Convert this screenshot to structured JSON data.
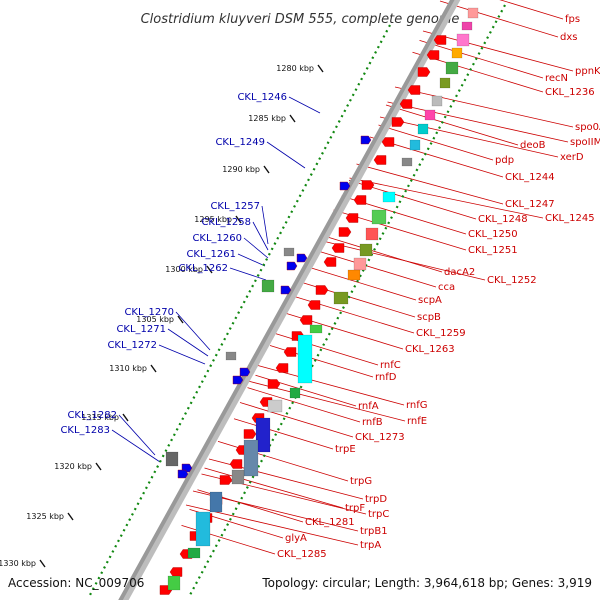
{
  "header": {
    "title": "Clostridium kluyveri DSM 555, complete genome"
  },
  "footer": {
    "accession": "Accession: NC_009706",
    "summary": "Topology: circular; Length: 3,964,618 bp; Genes: 3,919"
  },
  "colors": {
    "gene_red": "#ff0000",
    "label_red": "#cc0000",
    "label_blue": "#0000aa",
    "blue_feature": "#0000ee",
    "tick_green": "#118811",
    "backbone": "#999999"
  },
  "ruler": {
    "ticks": [
      {
        "label": "1280 kbp"
      },
      {
        "label": "1285 kbp"
      },
      {
        "label": "1290 kbp"
      },
      {
        "label": "1295 kbp"
      },
      {
        "label": "1300 kbp"
      },
      {
        "label": "1305 kbp"
      },
      {
        "label": "1310 kbp"
      },
      {
        "label": "1315 kbp"
      },
      {
        "label": "1320 kbp"
      },
      {
        "label": "1325 kbp"
      },
      {
        "label": "1330 kbp"
      }
    ]
  },
  "labels_left": [
    {
      "name": "CKL_1246"
    },
    {
      "name": "CKL_1249"
    },
    {
      "name": "CKL_1257"
    },
    {
      "name": "CKL_1258"
    },
    {
      "name": "CKL_1260"
    },
    {
      "name": "CKL_1261"
    },
    {
      "name": "CKL_1262"
    },
    {
      "name": "CKL_1270"
    },
    {
      "name": "CKL_1271"
    },
    {
      "name": "CKL_1272"
    },
    {
      "name": "CKL_1282"
    },
    {
      "name": "CKL_1283"
    }
  ],
  "labels_right": [
    {
      "name": "fps"
    },
    {
      "name": "dxs"
    },
    {
      "name": "ppnK"
    },
    {
      "name": "recN"
    },
    {
      "name": "CKL_1236"
    },
    {
      "name": "spo0A"
    },
    {
      "name": "spoIIM"
    },
    {
      "name": "deoB"
    },
    {
      "name": "xerD"
    },
    {
      "name": "pdp"
    },
    {
      "name": "CKL_1244"
    },
    {
      "name": "CKL_1247"
    },
    {
      "name": "CKL_1245"
    },
    {
      "name": "CKL_1248"
    },
    {
      "name": "CKL_1250"
    },
    {
      "name": "CKL_1251"
    },
    {
      "name": "dacA2"
    },
    {
      "name": "CKL_1252"
    },
    {
      "name": "cca"
    },
    {
      "name": "scpA"
    },
    {
      "name": "scpB"
    },
    {
      "name": "CKL_1259"
    },
    {
      "name": "CKL_1263"
    },
    {
      "name": "rnfC"
    },
    {
      "name": "rnfD"
    },
    {
      "name": "rnfG"
    },
    {
      "name": "rnfA"
    },
    {
      "name": "rnfB"
    },
    {
      "name": "rnfE"
    },
    {
      "name": "CKL_1273"
    },
    {
      "name": "trpE"
    },
    {
      "name": "trpG"
    },
    {
      "name": "trpD"
    },
    {
      "name": "trpF"
    },
    {
      "name": "trpC"
    },
    {
      "name": "CKL_1281"
    },
    {
      "name": "trpB1"
    },
    {
      "name": "glyA"
    },
    {
      "name": "trpA"
    },
    {
      "name": "CKL_1285"
    }
  ]
}
